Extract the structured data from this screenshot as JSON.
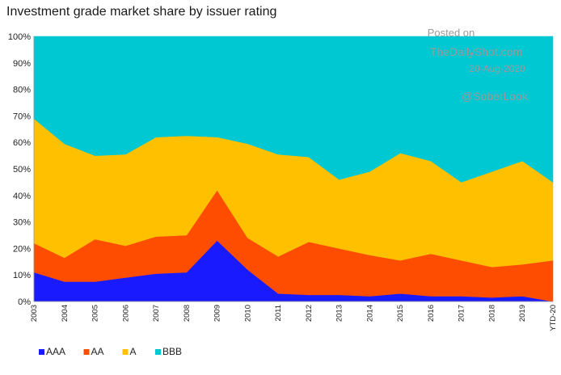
{
  "chart_data": {
    "type": "area",
    "stacked": true,
    "percent": true,
    "title": "Investment grade market share by issuer rating",
    "xlabel": "",
    "ylabel": "",
    "ylim": [
      0,
      100
    ],
    "yticks": [
      "0%",
      "10%",
      "20%",
      "30%",
      "40%",
      "50%",
      "60%",
      "70%",
      "80%",
      "90%",
      "100%"
    ],
    "categories": [
      "2003",
      "2004",
      "2005",
      "2006",
      "2007",
      "2008",
      "2009",
      "2010",
      "2011",
      "2012",
      "2013",
      "2014",
      "2015",
      "2016",
      "2017",
      "2018",
      "2019",
      "YTD-20"
    ],
    "series": [
      {
        "name": "AAA",
        "color": "#1a1aff",
        "values": [
          11,
          7.5,
          7.5,
          9,
          10.5,
          11,
          23,
          12,
          3,
          2.5,
          2.5,
          2,
          3,
          2,
          2,
          1.5,
          2,
          0
        ]
      },
      {
        "name": "AA",
        "color": "#ff4d00",
        "values": [
          11,
          9,
          16,
          12,
          14,
          14,
          19,
          12,
          14,
          20,
          17.5,
          15.5,
          12.5,
          16,
          13.5,
          11.5,
          12,
          15.5
        ]
      },
      {
        "name": "A",
        "color": "#ffc000",
        "values": [
          47,
          43,
          31.5,
          34.5,
          37.5,
          37.5,
          20,
          35.5,
          38.5,
          32,
          26,
          31.5,
          40.5,
          35,
          29.5,
          36,
          39,
          29.5
        ]
      },
      {
        "name": "BBB",
        "color": "#00c8d2",
        "values": [
          31,
          40.5,
          45,
          44.5,
          38,
          37.5,
          38,
          40.5,
          44.5,
          45.5,
          54,
          51,
          44,
          47,
          55,
          51,
          47,
          55
        ]
      }
    ],
    "legend_position": "bottom-left",
    "grid": false
  },
  "watermark": {
    "posted_on": "Posted on",
    "site": "TheDailyShot.com",
    "date": "20-Aug-2020",
    "handle": "@SoberLook"
  }
}
